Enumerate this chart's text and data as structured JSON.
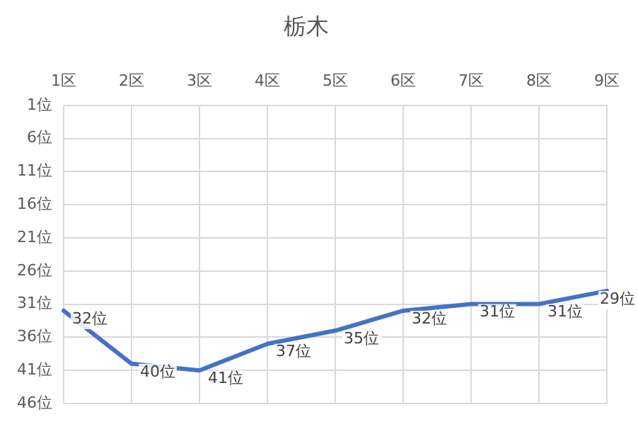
{
  "chart_data": {
    "type": "line",
    "title": "栃木",
    "categories": [
      "1区",
      "2区",
      "3区",
      "4区",
      "5区",
      "6区",
      "7区",
      "8区",
      "9区"
    ],
    "series": [
      {
        "color": "#4472c4",
        "values": [
          32,
          40,
          41,
          37,
          35,
          32,
          31,
          31,
          29
        ],
        "value_labels": [
          "32位",
          "40位",
          "41位",
          "37位",
          "35位",
          "32位",
          "31位",
          "31位",
          "29位"
        ]
      }
    ],
    "ylim": [
      46,
      1
    ],
    "yticks": [
      {
        "value": 1,
        "label": "1位"
      },
      {
        "value": 6,
        "label": "6位"
      },
      {
        "value": 11,
        "label": "11位"
      },
      {
        "value": 16,
        "label": "16位"
      },
      {
        "value": 21,
        "label": "21位"
      },
      {
        "value": 26,
        "label": "26位"
      },
      {
        "value": 31,
        "label": "31位"
      },
      {
        "value": 36,
        "label": "36位"
      },
      {
        "value": 41,
        "label": "41位"
      },
      {
        "value": 46,
        "label": "46位"
      }
    ],
    "grid": true,
    "legend": false,
    "marker": "none",
    "line_style": "solid"
  }
}
